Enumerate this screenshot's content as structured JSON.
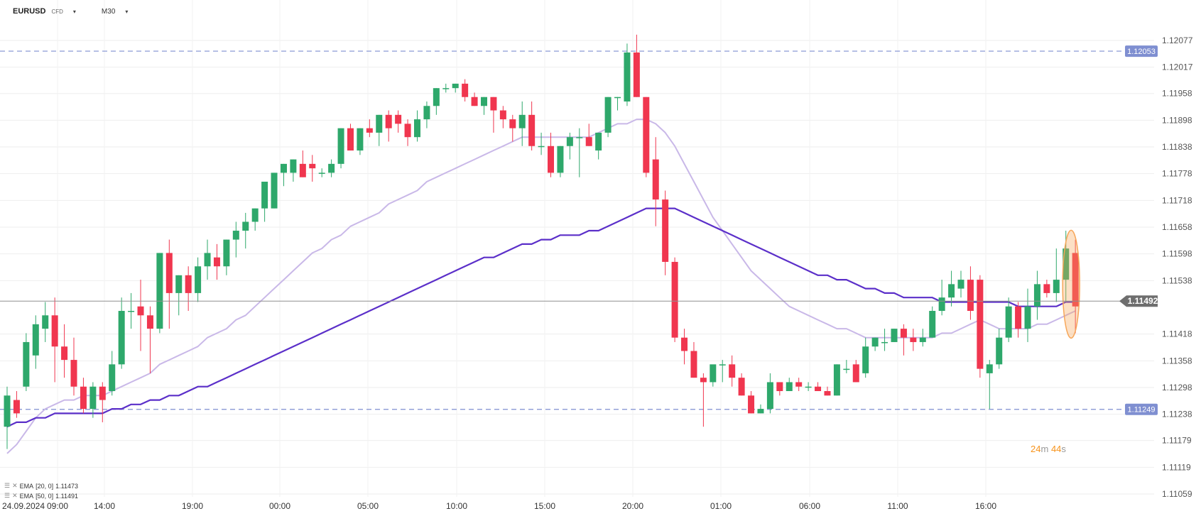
{
  "header": {
    "symbol": "EURUSD",
    "instrument_type": "CFD",
    "timeframe": "M30"
  },
  "indicators": [
    {
      "label": "EMA",
      "params": "[20, 0]",
      "value": "1.11473",
      "color": "#c9b8e8"
    },
    {
      "label": "EMA",
      "params": "[50, 0]",
      "value": "1.11491",
      "color": "#5b2fc9"
    }
  ],
  "timer": {
    "minutes": "24",
    "m": "m",
    "seconds": "44",
    "s": "s"
  },
  "colors": {
    "up": "#2ea86b",
    "down": "#f0364f",
    "ema20": "#c9b8e8",
    "ema50": "#5b2fc9",
    "dashed": "#7f8fd1",
    "current": "#909090",
    "highlight": "#f7a75a"
  },
  "chart_data": {
    "type": "candlestick",
    "timeframe": "M30",
    "ylim": [
      1.11059,
      1.12077
    ],
    "y_ticks": [
      "1.12077",
      "1.12017",
      "1.11958",
      "1.11898",
      "1.11838",
      "1.11778",
      "1.11718",
      "1.11658",
      "1.11598",
      "1.11538",
      "1.11418",
      "1.11358",
      "1.11298",
      "1.11238",
      "1.11179",
      "1.11119",
      "1.11059"
    ],
    "x_ticks": [
      "24.09.2024",
      "09:00",
      "14:00",
      "19:00",
      "00:00",
      "05:00",
      "10:00",
      "15:00",
      "20:00",
      "01:00",
      "06:00",
      "11:00",
      "16:00"
    ],
    "current_price": "1.11492",
    "levels": [
      "1.12053",
      "1.11249"
    ],
    "series_ohlc": [
      [
        1.1121,
        1.113,
        1.1116,
        1.1128
      ],
      [
        1.1127,
        1.1129,
        1.1123,
        1.1124
      ],
      [
        1.113,
        1.1142,
        1.1129,
        1.114
      ],
      [
        1.1137,
        1.1146,
        1.1134,
        1.1144
      ],
      [
        1.1143,
        1.1149,
        1.114,
        1.1146
      ],
      [
        1.1146,
        1.115,
        1.1131,
        1.1139
      ],
      [
        1.1139,
        1.1144,
        1.1132,
        1.1136
      ],
      [
        1.1136,
        1.1141,
        1.1128,
        1.113
      ],
      [
        1.113,
        1.1132,
        1.1124,
        1.1125
      ],
      [
        1.1125,
        1.1131,
        1.1123,
        1.113
      ],
      [
        1.113,
        1.1131,
        1.1122,
        1.1127
      ],
      [
        1.1129,
        1.1138,
        1.1128,
        1.1135
      ],
      [
        1.1135,
        1.115,
        1.1134,
        1.1147
      ],
      [
        1.1147,
        1.1151,
        1.1143,
        1.1147
      ],
      [
        1.1148,
        1.1154,
        1.1138,
        1.1146
      ],
      [
        1.1146,
        1.1148,
        1.1133,
        1.1143
      ],
      [
        1.1143,
        1.116,
        1.1142,
        1.116
      ],
      [
        1.116,
        1.1163,
        1.1143,
        1.1151
      ],
      [
        1.1151,
        1.1155,
        1.1146,
        1.1155
      ],
      [
        1.1155,
        1.1157,
        1.1147,
        1.1151
      ],
      [
        1.1151,
        1.1159,
        1.1149,
        1.1157
      ],
      [
        1.1157,
        1.1163,
        1.1154,
        1.116
      ],
      [
        1.1159,
        1.1162,
        1.1154,
        1.1157
      ],
      [
        1.1157,
        1.1163,
        1.1155,
        1.1163
      ],
      [
        1.1163,
        1.1167,
        1.1159,
        1.1165
      ],
      [
        1.1165,
        1.1169,
        1.1161,
        1.1167
      ],
      [
        1.1167,
        1.117,
        1.1165,
        1.117
      ],
      [
        1.117,
        1.1172,
        1.1167,
        1.1176
      ],
      [
        1.117,
        1.1178,
        1.117,
        1.1178
      ],
      [
        1.1178,
        1.118,
        1.1175,
        1.118
      ],
      [
        1.1178,
        1.1181,
        1.1176,
        1.1181
      ],
      [
        1.118,
        1.1183,
        1.1177,
        1.1177
      ],
      [
        1.118,
        1.1182,
        1.1176,
        1.1179
      ],
      [
        1.1178,
        1.1179,
        1.1177,
        1.1178
      ],
      [
        1.1178,
        1.1181,
        1.1177,
        1.118
      ],
      [
        1.118,
        1.1188,
        1.1179,
        1.1188
      ],
      [
        1.1188,
        1.1189,
        1.1183,
        1.1183
      ],
      [
        1.1183,
        1.1188,
        1.1182,
        1.1188
      ],
      [
        1.1188,
        1.119,
        1.1186,
        1.1187
      ],
      [
        1.1187,
        1.1191,
        1.1184,
        1.1191
      ],
      [
        1.1191,
        1.1192,
        1.1185,
        1.1188
      ],
      [
        1.1191,
        1.1192,
        1.1187,
        1.1189
      ],
      [
        1.1189,
        1.119,
        1.1184,
        1.1186
      ],
      [
        1.1186,
        1.1192,
        1.1185,
        1.119
      ],
      [
        1.119,
        1.1194,
        1.1188,
        1.1193
      ],
      [
        1.1193,
        1.1197,
        1.1191,
        1.1197
      ],
      [
        1.1197,
        1.1198,
        1.1196,
        1.1197
      ],
      [
        1.1197,
        1.1198,
        1.1196,
        1.1198
      ],
      [
        1.1198,
        1.1199,
        1.1194,
        1.1195
      ],
      [
        1.1195,
        1.1196,
        1.1193,
        1.1193
      ],
      [
        1.1193,
        1.1195,
        1.1191,
        1.1195
      ],
      [
        1.1195,
        1.1195,
        1.1187,
        1.1192
      ],
      [
        1.1192,
        1.1193,
        1.1188,
        1.119
      ],
      [
        1.119,
        1.1191,
        1.1185,
        1.1188
      ],
      [
        1.1188,
        1.1194,
        1.1184,
        1.1191
      ],
      [
        1.1191,
        1.1194,
        1.1183,
        1.1184
      ],
      [
        1.1184,
        1.1187,
        1.1182,
        1.1184
      ],
      [
        1.1184,
        1.1187,
        1.1177,
        1.1178
      ],
      [
        1.1178,
        1.1184,
        1.1177,
        1.1184
      ],
      [
        1.1184,
        1.1187,
        1.1181,
        1.1186
      ],
      [
        1.1186,
        1.1188,
        1.1177,
        1.1186
      ],
      [
        1.1186,
        1.1189,
        1.1184,
        1.1184
      ],
      [
        1.1183,
        1.1187,
        1.1181,
        1.1187
      ],
      [
        1.1187,
        1.1195,
        1.1186,
        1.1195
      ],
      [
        1.1195,
        1.1195,
        1.1192,
        1.1195
      ],
      [
        1.1194,
        1.1207,
        1.1193,
        1.1205
      ],
      [
        1.1205,
        1.1209,
        1.1195,
        1.1195
      ],
      [
        1.1195,
        1.1195,
        1.1177,
        1.1178
      ],
      [
        1.1181,
        1.1186,
        1.1166,
        1.1172
      ],
      [
        1.1172,
        1.1174,
        1.1155,
        1.1158
      ],
      [
        1.1158,
        1.1159,
        1.114,
        1.1141
      ],
      [
        1.1141,
        1.1143,
        1.1135,
        1.1138
      ],
      [
        1.1138,
        1.114,
        1.1132,
        1.1132
      ],
      [
        1.1132,
        1.1133,
        1.1121,
        1.1131
      ],
      [
        1.1131,
        1.1134,
        1.113,
        1.1135
      ],
      [
        1.1135,
        1.1136,
        1.1131,
        1.1135
      ],
      [
        1.1135,
        1.1137,
        1.113,
        1.1132
      ],
      [
        1.1132,
        1.1133,
        1.1128,
        1.1128
      ],
      [
        1.1128,
        1.1129,
        1.1124,
        1.1124
      ],
      [
        1.1124,
        1.1126,
        1.1124,
        1.1125
      ],
      [
        1.1125,
        1.1133,
        1.1124,
        1.1131
      ],
      [
        1.1131,
        1.1131,
        1.1128,
        1.1129
      ],
      [
        1.1129,
        1.1132,
        1.1129,
        1.1131
      ],
      [
        1.1131,
        1.1132,
        1.1129,
        1.113
      ],
      [
        1.113,
        1.1131,
        1.1129,
        1.113
      ],
      [
        1.113,
        1.1131,
        1.1129,
        1.1129
      ],
      [
        1.1129,
        1.113,
        1.1128,
        1.1128
      ],
      [
        1.1128,
        1.1135,
        1.1128,
        1.1135
      ],
      [
        1.1134,
        1.1136,
        1.1133,
        1.1134
      ],
      [
        1.1135,
        1.1136,
        1.1131,
        1.1131
      ],
      [
        1.1133,
        1.1141,
        1.1132,
        1.1139
      ],
      [
        1.1139,
        1.1141,
        1.1138,
        1.1141
      ],
      [
        1.114,
        1.1143,
        1.1138,
        1.114
      ],
      [
        1.114,
        1.1143,
        1.114,
        1.1143
      ],
      [
        1.1143,
        1.1144,
        1.1137,
        1.1141
      ],
      [
        1.1141,
        1.1143,
        1.1138,
        1.114
      ],
      [
        1.114,
        1.1143,
        1.1139,
        1.1141
      ],
      [
        1.1141,
        1.1148,
        1.1141,
        1.1147
      ],
      [
        1.1147,
        1.1154,
        1.1146,
        1.115
      ],
      [
        1.115,
        1.1156,
        1.1148,
        1.1153
      ],
      [
        1.1152,
        1.1156,
        1.115,
        1.1154
      ],
      [
        1.1154,
        1.1157,
        1.1145,
        1.1147
      ],
      [
        1.1154,
        1.1155,
        1.1132,
        1.1134
      ],
      [
        1.1133,
        1.1136,
        1.1125,
        1.1135
      ],
      [
        1.1135,
        1.1143,
        1.1134,
        1.1141
      ],
      [
        1.1141,
        1.115,
        1.114,
        1.1148
      ],
      [
        1.1148,
        1.1149,
        1.1141,
        1.1143
      ],
      [
        1.1143,
        1.1152,
        1.114,
        1.1148
      ],
      [
        1.1148,
        1.1156,
        1.1145,
        1.1153
      ],
      [
        1.1153,
        1.1154,
        1.115,
        1.1151
      ],
      [
        1.1151,
        1.1161,
        1.1149,
        1.1154
      ],
      [
        1.1154,
        1.1165,
        1.1149,
        1.1161
      ],
      [
        1.116,
        1.1163,
        1.1142,
        1.1148
      ]
    ],
    "ema20": [
      1.1115,
      1.1117,
      1.112,
      1.1123,
      1.1125,
      1.1126,
      1.1127,
      1.1127,
      1.1128,
      1.1128,
      1.1128,
      1.1129,
      1.113,
      1.1131,
      1.1132,
      1.1133,
      1.1135,
      1.1136,
      1.1137,
      1.1138,
      1.1139,
      1.1141,
      1.1142,
      1.1143,
      1.1145,
      1.1146,
      1.1148,
      1.115,
      1.1152,
      1.1154,
      1.1156,
      1.1158,
      1.116,
      1.1161,
      1.1163,
      1.1164,
      1.1166,
      1.1167,
      1.1168,
      1.1169,
      1.1171,
      1.1172,
      1.1173,
      1.1174,
      1.1176,
      1.1177,
      1.1178,
      1.1179,
      1.118,
      1.1181,
      1.1182,
      1.1183,
      1.1184,
      1.1185,
      1.1186,
      1.1186,
      1.1186,
      1.1186,
      1.1186,
      1.1186,
      1.1186,
      1.1186,
      1.1187,
      1.1188,
      1.1189,
      1.1189,
      1.119,
      1.119,
      1.1189,
      1.1187,
      1.1184,
      1.118,
      1.1176,
      1.1172,
      1.1168,
      1.1165,
      1.1162,
      1.1159,
      1.1156,
      1.1154,
      1.1152,
      1.115,
      1.1148,
      1.1147,
      1.1146,
      1.1145,
      1.1144,
      1.1143,
      1.1143,
      1.1142,
      1.1141,
      1.1141,
      1.1141,
      1.1141,
      1.1141,
      1.1141,
      1.1141,
      1.1141,
      1.1142,
      1.1142,
      1.1143,
      1.1144,
      1.1145,
      1.1144,
      1.1143,
      1.1143,
      1.1143,
      1.1143,
      1.1144,
      1.1144,
      1.1145,
      1.1146,
      1.1147
    ],
    "ema50": [
      1.1121,
      1.1122,
      1.1122,
      1.1123,
      1.1123,
      1.1124,
      1.1124,
      1.1124,
      1.1124,
      1.1124,
      1.1124,
      1.1125,
      1.1125,
      1.1126,
      1.1126,
      1.1127,
      1.1127,
      1.1128,
      1.1128,
      1.1129,
      1.113,
      1.113,
      1.1131,
      1.1132,
      1.1133,
      1.1134,
      1.1135,
      1.1136,
      1.1137,
      1.1138,
      1.1139,
      1.114,
      1.1141,
      1.1142,
      1.1143,
      1.1144,
      1.1145,
      1.1146,
      1.1147,
      1.1148,
      1.1149,
      1.115,
      1.1151,
      1.1152,
      1.1153,
      1.1154,
      1.1155,
      1.1156,
      1.1157,
      1.1158,
      1.1159,
      1.1159,
      1.116,
      1.1161,
      1.1162,
      1.1162,
      1.1163,
      1.1163,
      1.1164,
      1.1164,
      1.1164,
      1.1165,
      1.1165,
      1.1166,
      1.1167,
      1.1168,
      1.1169,
      1.117,
      1.117,
      1.117,
      1.117,
      1.1169,
      1.1168,
      1.1167,
      1.1166,
      1.1165,
      1.1164,
      1.1163,
      1.1162,
      1.1161,
      1.116,
      1.1159,
      1.1158,
      1.1157,
      1.1156,
      1.1155,
      1.1155,
      1.1154,
      1.1154,
      1.1153,
      1.1152,
      1.1152,
      1.1151,
      1.1151,
      1.115,
      1.115,
      1.115,
      1.115,
      1.1149,
      1.1149,
      1.1149,
      1.1149,
      1.1149,
      1.1149,
      1.1149,
      1.1149,
      1.1148,
      1.1148,
      1.1148,
      1.1148,
      1.1148,
      1.1149,
      1.1149
    ]
  }
}
